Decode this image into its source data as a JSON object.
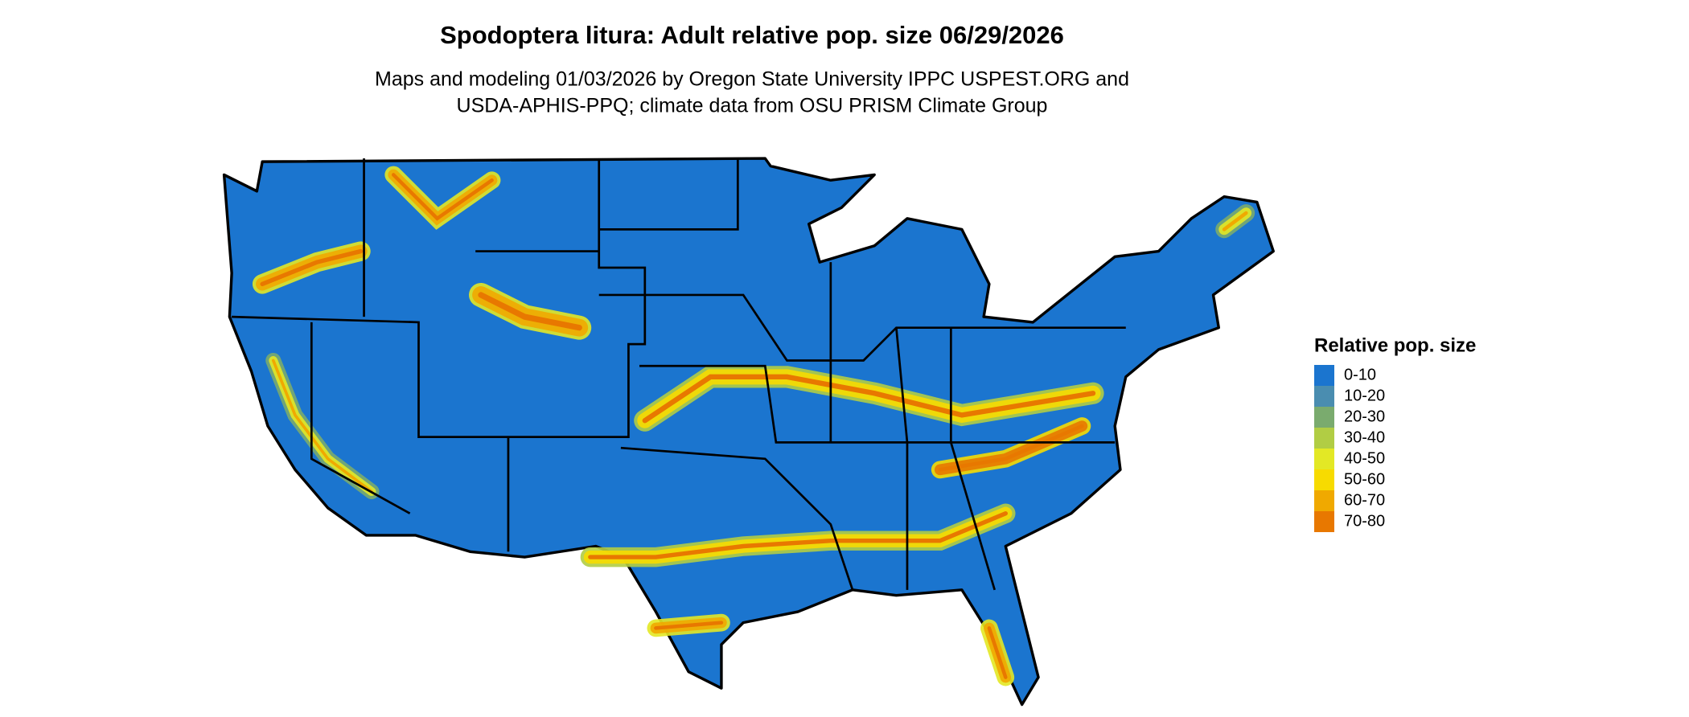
{
  "header": {
    "title": "Spodoptera litura: Adult relative pop. size 06/29/2026",
    "subtitle_lines": [
      "Maps and modeling 01/03/2026 by Oregon State University IPPC USPEST.ORG and",
      "USDA-APHIS-PPQ; climate data from OSU PRISM Climate Group"
    ]
  },
  "legend": {
    "title": "Relative pop. size",
    "items": [
      {
        "label": "0-10",
        "color": "#1b75cf"
      },
      {
        "label": "10-20",
        "color": "#4a8db0"
      },
      {
        "label": "20-30",
        "color": "#7aab6e"
      },
      {
        "label": "30-40",
        "color": "#b1cd44"
      },
      {
        "label": "40-50",
        "color": "#e3e825"
      },
      {
        "label": "50-60",
        "color": "#f7db00"
      },
      {
        "label": "60-70",
        "color": "#f0a900"
      },
      {
        "label": "70-80",
        "color": "#e87800"
      }
    ]
  }
}
